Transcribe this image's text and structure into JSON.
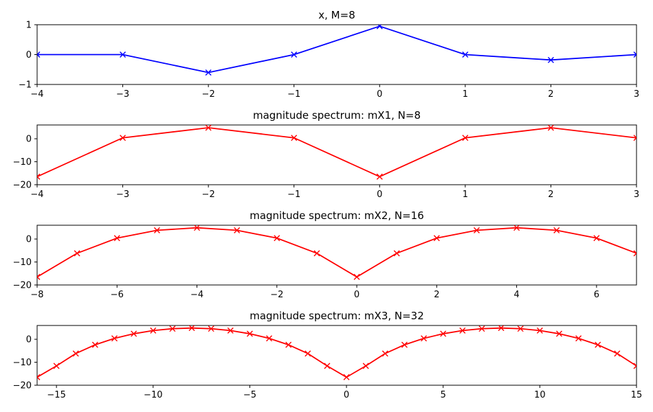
{
  "chart_data": [
    {
      "type": "line",
      "title": "x, M=8",
      "color": "#0000ff",
      "x": [
        -4,
        -3,
        -2,
        -1,
        0,
        1,
        2,
        3
      ],
      "y": [
        0,
        0,
        -0.6,
        0,
        0.95,
        0,
        -0.18,
        0
      ],
      "xlim": [
        -4,
        3
      ],
      "ylim": [
        -1,
        1
      ],
      "xticks": [
        -4,
        -3,
        -2,
        -1,
        0,
        1,
        2,
        3
      ],
      "yticks": [
        -1,
        0,
        1
      ],
      "xlabel": "",
      "ylabel": ""
    },
    {
      "type": "line",
      "title": "magnitude spectrum: mX1, N=8",
      "color": "#ff0000",
      "x": [
        -4,
        -3,
        -2,
        -1,
        0,
        1,
        2,
        3
      ],
      "y": [
        -16.5,
        0.4,
        4.8,
        0.4,
        -16.5,
        0.4,
        4.8,
        0.4
      ],
      "xlim": [
        -4,
        3
      ],
      "ylim": [
        -20,
        6
      ],
      "xticks": [
        -4,
        -3,
        -2,
        -1,
        0,
        1,
        2,
        3
      ],
      "yticks": [
        -20,
        -10,
        0
      ],
      "xlabel": "",
      "ylabel": ""
    },
    {
      "type": "line",
      "title": "magnitude spectrum: mX2, N=16",
      "color": "#ff0000",
      "x": [
        -8,
        -7,
        -6,
        -5,
        -4,
        -3,
        -2,
        -1,
        0,
        1,
        2,
        3,
        4,
        5,
        6,
        7
      ],
      "y": [
        -16.5,
        -6.2,
        0.4,
        3.8,
        4.9,
        3.8,
        0.4,
        -6.2,
        -16.5,
        -6.2,
        0.4,
        3.8,
        4.9,
        3.8,
        0.4,
        -6.2
      ],
      "xlim": [
        -8,
        7
      ],
      "ylim": [
        -20,
        6
      ],
      "xticks": [
        -8,
        -6,
        -4,
        -2,
        0,
        2,
        4,
        6
      ],
      "yticks": [
        -20,
        -10,
        0
      ],
      "xlabel": "",
      "ylabel": ""
    },
    {
      "type": "line",
      "title": "magnitude spectrum: mX3, N=32",
      "color": "#ff0000",
      "x": [
        -16,
        -15,
        -14,
        -13,
        -12,
        -11,
        -10,
        -9,
        -8,
        -7,
        -6,
        -5,
        -4,
        -3,
        -2,
        -1,
        0,
        1,
        2,
        3,
        4,
        5,
        6,
        7,
        8,
        9,
        10,
        11,
        12,
        13,
        14,
        15
      ],
      "y": [
        -16.5,
        -11.6,
        -6.2,
        -2.4,
        0.4,
        2.4,
        3.8,
        4.6,
        4.9,
        4.6,
        3.8,
        2.4,
        0.4,
        -2.4,
        -6.2,
        -11.6,
        -16.5,
        -11.6,
        -6.2,
        -2.4,
        0.4,
        2.4,
        3.8,
        4.6,
        4.9,
        4.6,
        3.8,
        2.4,
        0.4,
        -2.4,
        -6.2,
        -11.6
      ],
      "xlim": [
        -16,
        15
      ],
      "ylim": [
        -20,
        6
      ],
      "xticks": [
        -15,
        -10,
        -5,
        0,
        5,
        10,
        15
      ],
      "yticks": [
        -20,
        -10,
        0
      ],
      "xlabel": "",
      "ylabel": ""
    }
  ]
}
